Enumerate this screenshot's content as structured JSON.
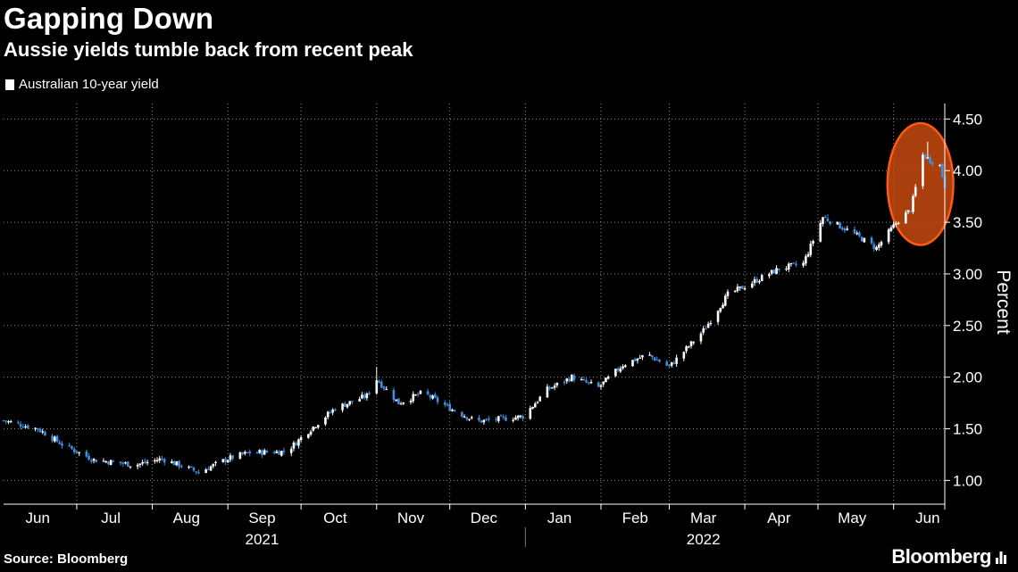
{
  "header": {
    "title": "Gapping Down",
    "subtitle": "Aussie yields tumble back from recent peak"
  },
  "legend": {
    "label": "Australian 10-year yield"
  },
  "footer": {
    "source": "Source: Bloomberg",
    "brand": "Bloomberg"
  },
  "colors": {
    "up": "#ffffff",
    "down": "#3d8fe0",
    "grid": "#8a8a8a",
    "axis": "#ffffff",
    "highlight_stroke": "#ff5a14",
    "highlight_fill": "#c84a10"
  },
  "chart_data": {
    "type": "candlestick",
    "title": "Gapping Down",
    "subtitle": "Aussie yields tumble back from recent peak",
    "series_name": "Australian 10-year yield",
    "ylabel": "Percent",
    "ylim": [
      0.77,
      4.65
    ],
    "yticks": [
      1.0,
      1.5,
      2.0,
      2.5,
      3.0,
      3.5,
      4.0,
      4.5
    ],
    "ytick_labels": [
      "1.00",
      "1.50",
      "2.00",
      "2.50",
      "3.00",
      "3.50",
      "4.00",
      "4.50"
    ],
    "x_start": "2021-06-01",
    "x_end": "2022-06-22",
    "month_labels": [
      {
        "label": "Jun",
        "date": "2021-06-15"
      },
      {
        "label": "Jul",
        "date": "2021-07-15"
      },
      {
        "label": "Aug",
        "date": "2021-08-15"
      },
      {
        "label": "Sep",
        "date": "2021-09-15"
      },
      {
        "label": "Oct",
        "date": "2021-10-15"
      },
      {
        "label": "Nov",
        "date": "2021-11-15"
      },
      {
        "label": "Dec",
        "date": "2021-12-15"
      },
      {
        "label": "Jan",
        "date": "2022-01-15"
      },
      {
        "label": "Feb",
        "date": "2022-02-15"
      },
      {
        "label": "Mar",
        "date": "2022-03-15"
      },
      {
        "label": "Apr",
        "date": "2022-04-15"
      },
      {
        "label": "May",
        "date": "2022-05-15"
      },
      {
        "label": "Jun",
        "date": "2022-06-15"
      }
    ],
    "month_boundaries": [
      "2021-07-01",
      "2021-08-01",
      "2021-09-01",
      "2021-10-01",
      "2021-11-01",
      "2021-12-01",
      "2022-01-01",
      "2022-02-01",
      "2022-03-01",
      "2022-04-01",
      "2022-05-01",
      "2022-06-01"
    ],
    "year_labels": [
      {
        "label": "2021",
        "date": "2021-09-15"
      },
      {
        "label": "2022",
        "date": "2022-03-15"
      }
    ],
    "year_divider": "2022-01-01",
    "grid": true,
    "legend_position": "top-left",
    "highlight": {
      "shape": "ellipse",
      "date_center": "2022-06-12",
      "date_halfwidth_days": 13.5,
      "y_center": 3.87,
      "y_halfheight": 0.59
    },
    "anchors": [
      {
        "date": "2021-06-01",
        "close": 1.58
      },
      {
        "date": "2021-06-15",
        "close": 1.5
      },
      {
        "date": "2021-06-25",
        "close": 1.35
      },
      {
        "date": "2021-07-08",
        "close": 1.2
      },
      {
        "date": "2021-07-25",
        "close": 1.15
      },
      {
        "date": "2021-08-05",
        "close": 1.21
      },
      {
        "date": "2021-08-20",
        "close": 1.08
      },
      {
        "date": "2021-09-01",
        "close": 1.21
      },
      {
        "date": "2021-09-10",
        "close": 1.27
      },
      {
        "date": "2021-09-25",
        "close": 1.28
      },
      {
        "date": "2021-10-05",
        "close": 1.5
      },
      {
        "date": "2021-10-15",
        "close": 1.7
      },
      {
        "date": "2021-10-28",
        "close": 1.82
      },
      {
        "date": "2021-11-01",
        "close": 1.98
      },
      {
        "date": "2021-11-10",
        "close": 1.75
      },
      {
        "date": "2021-11-20",
        "close": 1.85
      },
      {
        "date": "2021-12-01",
        "close": 1.7
      },
      {
        "date": "2021-12-12",
        "close": 1.57
      },
      {
        "date": "2021-12-31",
        "close": 1.62
      },
      {
        "date": "2022-01-10",
        "close": 1.88
      },
      {
        "date": "2022-01-20",
        "close": 2.0
      },
      {
        "date": "2022-01-31",
        "close": 1.9
      },
      {
        "date": "2022-02-10",
        "close": 2.12
      },
      {
        "date": "2022-02-20",
        "close": 2.22
      },
      {
        "date": "2022-03-01",
        "close": 2.1
      },
      {
        "date": "2022-03-15",
        "close": 2.45
      },
      {
        "date": "2022-03-25",
        "close": 2.8
      },
      {
        "date": "2022-04-01",
        "close": 2.88
      },
      {
        "date": "2022-04-15",
        "close": 3.05
      },
      {
        "date": "2022-04-25",
        "close": 3.1
      },
      {
        "date": "2022-05-03",
        "close": 3.55
      },
      {
        "date": "2022-05-15",
        "close": 3.4
      },
      {
        "date": "2022-05-25",
        "close": 3.25
      },
      {
        "date": "2022-06-03",
        "close": 3.52
      },
      {
        "date": "2022-06-08",
        "close": 3.62
      },
      {
        "date": "2022-06-13",
        "close": 4.15
      },
      {
        "date": "2022-06-16",
        "close": 4.1
      },
      {
        "date": "2022-06-20",
        "close": 4.05
      },
      {
        "date": "2022-06-22",
        "close": 3.85
      }
    ],
    "notable_highs": [
      {
        "date": "2021-11-01",
        "high": 2.1
      },
      {
        "date": "2022-05-05",
        "high": 3.58
      },
      {
        "date": "2022-06-15",
        "high": 4.28
      }
    ],
    "notable_lows": [
      {
        "date": "2021-08-20",
        "low": 1.06
      }
    ]
  }
}
